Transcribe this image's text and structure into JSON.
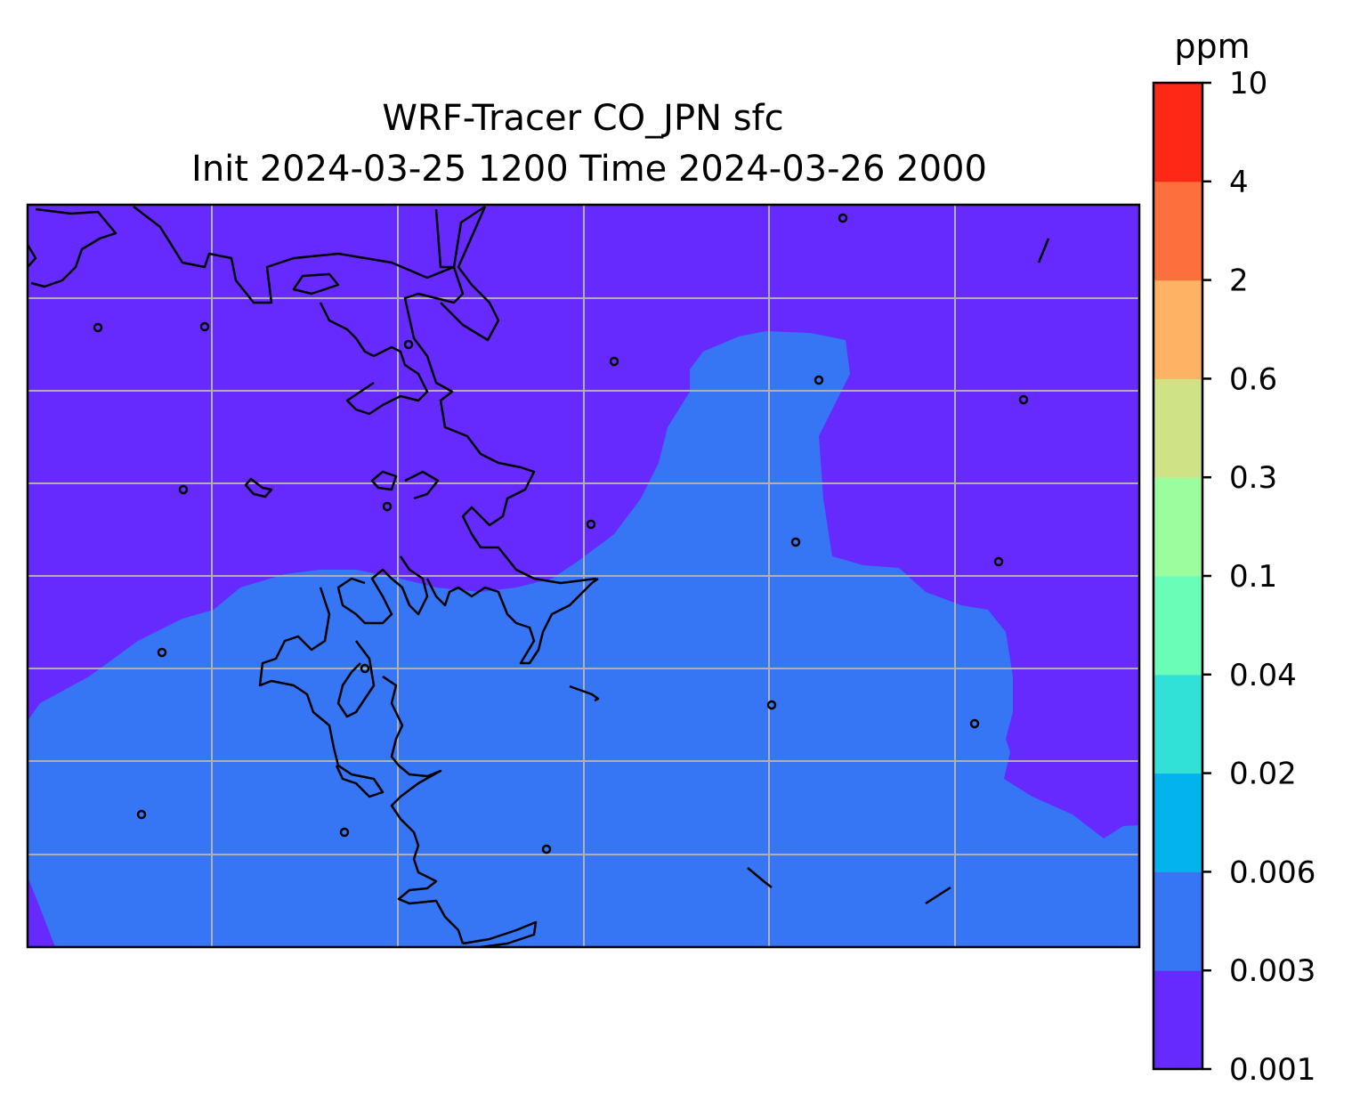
{
  "title": {
    "line1": "WRF-Tracer CO_JPN sfc",
    "line2": "Init 2024-03-25 1200 Time 2024-03-26 2000"
  },
  "colorbar": {
    "unit": "ppm",
    "levels": [
      "0.001",
      "0.003",
      "0.006",
      "0.02",
      "0.04",
      "0.1",
      "0.3",
      "0.6",
      "2",
      "4",
      "10"
    ],
    "colors": [
      "#6629fe",
      "#3675f4",
      "#02b3ee",
      "#31e1d8",
      "#69fdb8",
      "#9cfd9e",
      "#cfe286",
      "#fdb264",
      "#fe6f3e",
      "#fe2816"
    ]
  },
  "map": {
    "background_color": "#6629fe",
    "plume_color": "#3675f4",
    "gridlines": true
  }
}
